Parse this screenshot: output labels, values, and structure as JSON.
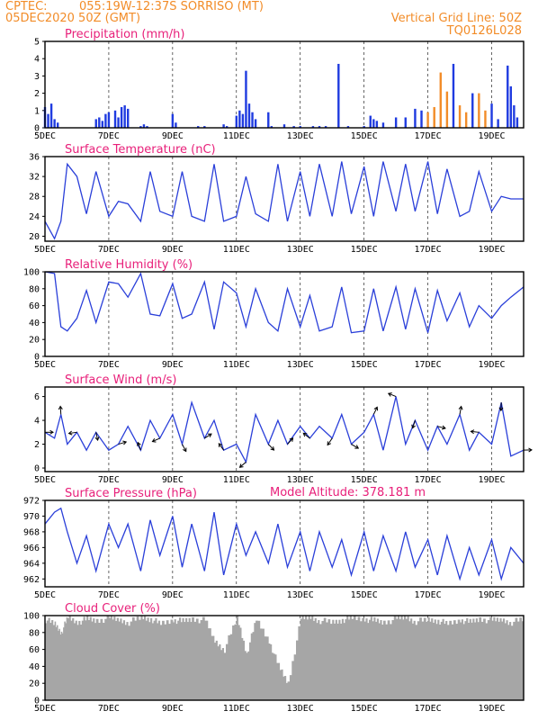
{
  "header": {
    "source": "CPTEC:",
    "location": "055:19W-12:37S  SORRISO (MT)",
    "run": "05DEC2020 50Z (GMT)",
    "grid_note": "Vertical Grid Line: 50Z",
    "code": "TQ0126L028",
    "altitude_text": "Model Altitude: 378.181 m"
  },
  "x_ticks": [
    "5DEC",
    "7DEC",
    "9DEC",
    "11DEC",
    "13DEC",
    "15DEC",
    "17DEC",
    "19DEC"
  ],
  "colors": {
    "series": "#2a3fd9",
    "bars": "#1f3be0",
    "accent_bars": "#f28c28",
    "cloud": "#a6a6a6",
    "title": "#e8207a",
    "header": "#f28c28"
  },
  "chart_data": [
    {
      "type": "bar",
      "title": "Precipitation (mm/h)",
      "ylim": [
        0,
        5
      ],
      "yticks": [
        "0",
        "1",
        "2",
        "3",
        "4",
        "5"
      ],
      "x_range_days": [
        5,
        20
      ],
      "series": [
        {
          "x": [
            5.0,
            5.1,
            5.2,
            5.3,
            5.4,
            6.6,
            6.7,
            6.8,
            6.9,
            7.0,
            7.2,
            7.3,
            7.4,
            7.5,
            7.6,
            8.0,
            8.1,
            8.2,
            9.0,
            9.1,
            9.8,
            10.0,
            10.6,
            10.7,
            11.0,
            11.1,
            11.2,
            11.3,
            11.4,
            11.5,
            11.6,
            12.0,
            12.1,
            12.5,
            12.8,
            13.0,
            13.4,
            13.6,
            13.8,
            14.2,
            14.5,
            15.0,
            15.2,
            15.3,
            15.4,
            15.6,
            16.0,
            16.3,
            16.6,
            16.8,
            17.0,
            17.2,
            17.4,
            17.6,
            17.8,
            18.0,
            18.2,
            18.4,
            18.6,
            18.8,
            19.0,
            19.2,
            19.5,
            19.6,
            19.7,
            19.8
          ],
          "values": [
            1.2,
            0.8,
            1.4,
            0.5,
            0.3,
            0.5,
            0.6,
            0.4,
            0.8,
            0.9,
            1.0,
            0.6,
            1.2,
            1.3,
            1.1,
            0.1,
            0.2,
            0.1,
            0.8,
            0.3,
            0.1,
            0.1,
            0.2,
            0.1,
            0.7,
            1.0,
            0.8,
            3.3,
            1.4,
            0.9,
            0.5,
            0.9,
            0.1,
            0.2,
            0.1,
            0.1,
            0.1,
            0.1,
            0.1,
            3.7,
            0.1,
            0.1,
            0.7,
            0.5,
            0.4,
            0.3,
            0.6,
            0.6,
            1.1,
            1.0,
            0.9,
            1.2,
            3.2,
            2.1,
            3.7,
            1.3,
            0.9,
            2.0,
            2.0,
            1.0,
            1.4,
            0.5,
            3.6,
            2.4,
            1.3,
            0.6
          ],
          "accent": [
            false,
            false,
            false,
            false,
            false,
            false,
            false,
            false,
            false,
            false,
            false,
            false,
            false,
            false,
            false,
            false,
            false,
            false,
            false,
            false,
            false,
            false,
            false,
            false,
            false,
            false,
            false,
            false,
            false,
            false,
            false,
            false,
            false,
            false,
            false,
            false,
            false,
            false,
            false,
            false,
            false,
            false,
            false,
            false,
            false,
            false,
            false,
            false,
            false,
            false,
            true,
            true,
            true,
            true,
            false,
            true,
            true,
            false,
            true,
            true,
            false,
            false,
            false,
            false,
            false,
            false
          ]
        }
      ]
    },
    {
      "type": "line",
      "title": "Surface Temperature (nC)",
      "ylim": [
        19,
        36
      ],
      "yticks": [
        "20",
        "24",
        "28",
        "32",
        "36"
      ],
      "x": [
        5.0,
        5.3,
        5.5,
        5.7,
        6.0,
        6.3,
        6.6,
        7.0,
        7.3,
        7.6,
        8.0,
        8.3,
        8.6,
        9.0,
        9.3,
        9.6,
        10.0,
        10.3,
        10.6,
        11.0,
        11.3,
        11.6,
        12.0,
        12.3,
        12.6,
        13.0,
        13.3,
        13.6,
        14.0,
        14.3,
        14.6,
        15.0,
        15.3,
        15.6,
        16.0,
        16.3,
        16.6,
        17.0,
        17.3,
        17.6,
        18.0,
        18.3,
        18.6,
        19.0,
        19.3,
        19.6,
        20.0
      ],
      "values": [
        23,
        19.5,
        23,
        34.5,
        32,
        24.5,
        33,
        24,
        27,
        26.5,
        23,
        33,
        25,
        24,
        33,
        24,
        23,
        34.5,
        23,
        24,
        32,
        24.5,
        23,
        34.5,
        23,
        33,
        24,
        34.5,
        24,
        35,
        24.5,
        34,
        24,
        35,
        25,
        34.5,
        25,
        35,
        24.5,
        33.5,
        24,
        25,
        33,
        25,
        28,
        27.5,
        27.5
      ]
    },
    {
      "type": "line",
      "title": "Relative Humidity (%)",
      "ylim": [
        0,
        100
      ],
      "yticks": [
        "0",
        "20",
        "40",
        "60",
        "80",
        "100"
      ],
      "x": [
        5.0,
        5.3,
        5.5,
        5.7,
        6.0,
        6.3,
        6.6,
        7.0,
        7.3,
        7.6,
        8.0,
        8.3,
        8.6,
        9.0,
        9.3,
        9.6,
        10.0,
        10.3,
        10.6,
        11.0,
        11.3,
        11.6,
        12.0,
        12.3,
        12.6,
        13.0,
        13.3,
        13.6,
        14.0,
        14.3,
        14.6,
        15.0,
        15.3,
        15.6,
        16.0,
        16.3,
        16.6,
        17.0,
        17.3,
        17.6,
        18.0,
        18.3,
        18.6,
        19.0,
        19.3,
        19.6,
        20.0
      ],
      "values": [
        100,
        98,
        35,
        30,
        45,
        78,
        40,
        88,
        86,
        70,
        98,
        50,
        48,
        86,
        45,
        50,
        88,
        32,
        88,
        75,
        35,
        80,
        40,
        30,
        80,
        35,
        72,
        30,
        35,
        82,
        28,
        30,
        80,
        30,
        82,
        32,
        80,
        28,
        78,
        42,
        75,
        35,
        60,
        45,
        60,
        70,
        82
      ]
    },
    {
      "type": "line",
      "title": "Surface Wind (m/s)",
      "ylim": [
        -0.3,
        6.8
      ],
      "yticks": [
        "0",
        "2",
        "4",
        "6"
      ],
      "x": [
        5.0,
        5.3,
        5.5,
        5.7,
        6.0,
        6.3,
        6.6,
        7.0,
        7.3,
        7.6,
        8.0,
        8.3,
        8.6,
        9.0,
        9.3,
        9.6,
        10.0,
        10.3,
        10.6,
        11.0,
        11.3,
        11.6,
        12.0,
        12.3,
        12.6,
        13.0,
        13.3,
        13.6,
        14.0,
        14.3,
        14.6,
        15.0,
        15.3,
        15.6,
        16.0,
        16.3,
        16.6,
        17.0,
        17.3,
        17.6,
        18.0,
        18.3,
        18.6,
        19.0,
        19.3,
        19.6,
        20.0
      ],
      "values": [
        3,
        2.5,
        4.5,
        2,
        3,
        1.5,
        3,
        1.5,
        2,
        3.5,
        1.5,
        4,
        2.5,
        4.5,
        2,
        5.5,
        2.5,
        4,
        1.5,
        2,
        0.5,
        4.5,
        2,
        4,
        2,
        3.5,
        2.5,
        3.5,
        2.5,
        4.5,
        2,
        3,
        4.5,
        1.5,
        6,
        2,
        4,
        1.5,
        3.5,
        2,
        4.5,
        1.5,
        3,
        2,
        5.5,
        1,
        1.5
      ]
    },
    {
      "type": "line",
      "title": "Surface Pressure (hPa)",
      "ylim": [
        961,
        972
      ],
      "yticks": [
        "962",
        "964",
        "966",
        "968",
        "970",
        "972"
      ],
      "x": [
        5.0,
        5.3,
        5.5,
        5.7,
        6.0,
        6.3,
        6.6,
        7.0,
        7.3,
        7.6,
        8.0,
        8.3,
        8.6,
        9.0,
        9.3,
        9.6,
        10.0,
        10.3,
        10.6,
        11.0,
        11.3,
        11.6,
        12.0,
        12.3,
        12.6,
        13.0,
        13.3,
        13.6,
        14.0,
        14.3,
        14.6,
        15.0,
        15.3,
        15.6,
        16.0,
        16.3,
        16.6,
        17.0,
        17.3,
        17.6,
        18.0,
        18.3,
        18.6,
        19.0,
        19.3,
        19.6,
        20.0
      ],
      "values": [
        969,
        970.5,
        971,
        968,
        964,
        967.5,
        963,
        969,
        966,
        969,
        963,
        969.5,
        965,
        970,
        963.5,
        969,
        963,
        970.5,
        962.5,
        969,
        965,
        968,
        964,
        969,
        963.5,
        968,
        963,
        968,
        963.5,
        967,
        962.5,
        968,
        963,
        967.5,
        963,
        968,
        963.5,
        967,
        962.5,
        967.5,
        962,
        966,
        962.5,
        967,
        962,
        966,
        964
      ]
    },
    {
      "type": "area",
      "title": "Cloud Cover (%)",
      "ylim": [
        0,
        100
      ],
      "yticks": [
        "0",
        "20",
        "40",
        "60",
        "80",
        "100"
      ],
      "x": [
        5.0,
        5.3,
        5.5,
        5.7,
        6.0,
        6.3,
        6.6,
        7.0,
        7.3,
        7.6,
        8.0,
        8.3,
        8.6,
        9.0,
        9.3,
        9.6,
        10.0,
        10.3,
        10.6,
        11.0,
        11.3,
        11.6,
        12.0,
        12.3,
        12.6,
        13.0,
        13.3,
        13.6,
        14.0,
        14.3,
        14.6,
        15.0,
        15.3,
        15.6,
        16.0,
        16.3,
        16.6,
        17.0,
        17.3,
        17.6,
        18.0,
        18.3,
        18.6,
        19.0,
        19.3,
        19.6,
        20.0
      ],
      "values": [
        95,
        90,
        80,
        98,
        92,
        96,
        94,
        97,
        95,
        92,
        98,
        96,
        90,
        95,
        93,
        96,
        94,
        70,
        60,
        98,
        55,
        95,
        70,
        40,
        20,
        96,
        98,
        94,
        92,
        95,
        97,
        96,
        94,
        92,
        96,
        98,
        93,
        95,
        94,
        90,
        95,
        92,
        96,
        94,
        95,
        92,
        96
      ]
    }
  ]
}
